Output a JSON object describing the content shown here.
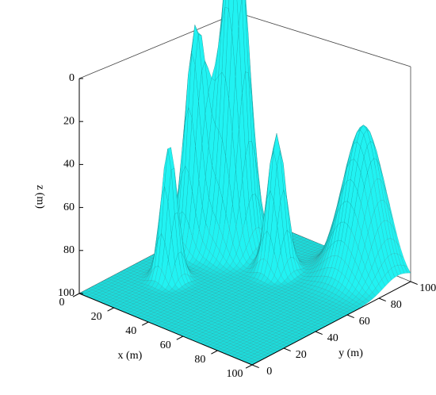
{
  "chart_data": {
    "type": "surface",
    "x_label": "x (m)",
    "y_label": "y (m)",
    "z_label": "z (m)",
    "xlim": [
      0,
      100
    ],
    "ylim": [
      0,
      100
    ],
    "zlim": [
      100,
      0
    ],
    "xticks": [
      0,
      20,
      40,
      60,
      80,
      100
    ],
    "yticks": [
      0,
      20,
      40,
      60,
      80,
      100
    ],
    "zticks": [
      0,
      20,
      40,
      60,
      80,
      100
    ],
    "color": "#1fe6e6",
    "mesh_color": "#1c6f6f",
    "grid": false,
    "peaks": [
      {
        "x": 20,
        "y": 35,
        "z": 36,
        "width": 3.5
      },
      {
        "x": 10,
        "y": 62,
        "z": 2,
        "width": 4.5
      },
      {
        "x": 25,
        "y": 73,
        "z": 2,
        "width": 5
      },
      {
        "x": 20,
        "y": 72,
        "z": 17,
        "width": 7
      },
      {
        "x": 50,
        "y": 70,
        "z": 35,
        "width": 4
      },
      {
        "x": 80,
        "y": 92,
        "z": 30,
        "width": 9
      }
    ]
  }
}
